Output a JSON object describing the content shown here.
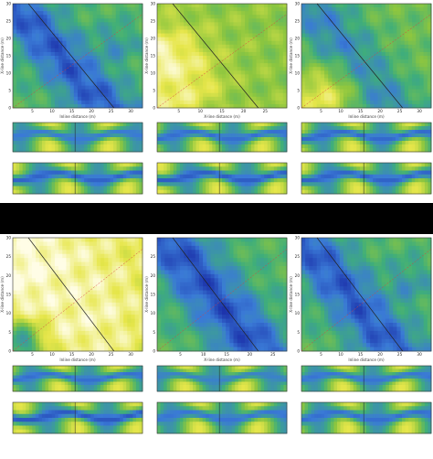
{
  "figure": {
    "separator_color": "#000000",
    "colormap": [
      "#1a2ea8",
      "#3a7ad6",
      "#3fae7a",
      "#8dc63f",
      "#e6e64a",
      "#fffde6"
    ],
    "reference_line_colors": {
      "diagonal": "#222222",
      "inline_ref": "#d94040"
    }
  },
  "chart_data": [
    {
      "id": "a-main",
      "type": "heatmap",
      "x_label": "Inline distance (m)",
      "y_label": "X-line distance (m)",
      "x_ticks": [
        "5",
        "10",
        "15",
        "20",
        "25",
        "30"
      ],
      "y_ticks": [
        "0",
        "5",
        "10",
        "15",
        "20",
        "25",
        "30"
      ],
      "xlim": [
        0,
        33
      ],
      "ylim": [
        0,
        30
      ],
      "fields": [
        {
          "kind": "band",
          "from": [
            0,
            30
          ],
          "to": [
            24,
            0
          ],
          "width": 5,
          "value": 0.12
        },
        {
          "kind": "blob",
          "at": [
            26,
            18
          ],
          "r": 4,
          "value": 0.3
        }
      ],
      "base": 0.45
    },
    {
      "id": "b-main",
      "type": "heatmap",
      "x_label": "X-line distance (m)",
      "y_label": "X-line distance (m)",
      "x_ticks": [
        "5",
        "10",
        "15",
        "20",
        "25"
      ],
      "y_ticks": [
        "0",
        "5",
        "10",
        "15",
        "20",
        "25",
        "30"
      ],
      "xlim": [
        0,
        30
      ],
      "ylim": [
        0,
        30
      ],
      "fields": [
        {
          "kind": "blob",
          "at": [
            0,
            12
          ],
          "r": 8,
          "value": 0.98
        },
        {
          "kind": "blob",
          "at": [
            4,
            5
          ],
          "r": 6,
          "value": 0.85
        }
      ],
      "base": 0.6
    },
    {
      "id": "c-main",
      "type": "heatmap",
      "x_label": "Inline distance (m)",
      "y_label": "X-line distance (m)",
      "x_ticks": [
        "5",
        "10",
        "15",
        "20",
        "25",
        "30"
      ],
      "y_ticks": [
        "0",
        "5",
        "10",
        "15",
        "20",
        "25",
        "30"
      ],
      "xlim": [
        0,
        33
      ],
      "ylim": [
        0,
        30
      ],
      "fields": [
        {
          "kind": "band",
          "from": [
            2,
            30
          ],
          "to": [
            22,
            0
          ],
          "width": 6,
          "value": 0.25
        },
        {
          "kind": "blob",
          "at": [
            5,
            3
          ],
          "r": 6,
          "value": 0.8
        }
      ],
      "base": 0.52
    },
    {
      "id": "d-main",
      "type": "heatmap",
      "x_label": "Inline distance (m)",
      "y_label": "X-line distance (m)",
      "x_ticks": [
        "5",
        "10",
        "15",
        "20",
        "25",
        "30"
      ],
      "y_ticks": [
        "0",
        "5",
        "10",
        "15",
        "20",
        "25",
        "30"
      ],
      "xlim": [
        0,
        33
      ],
      "ylim": [
        0,
        30
      ],
      "fields": [
        {
          "kind": "blob",
          "at": [
            4,
            22
          ],
          "r": 12,
          "value": 0.99
        },
        {
          "kind": "blob",
          "at": [
            18,
            10
          ],
          "r": 10,
          "value": 0.92
        },
        {
          "kind": "blob",
          "at": [
            2,
            2
          ],
          "r": 4,
          "value": 0.3
        }
      ],
      "base": 0.8
    },
    {
      "id": "e-main",
      "type": "heatmap",
      "x_label": "X-line distance (m)",
      "y_label": "X-line distance (m)",
      "x_ticks": [
        "5",
        "10",
        "15",
        "20",
        "25"
      ],
      "y_ticks": [
        "0",
        "5",
        "10",
        "15",
        "20",
        "25"
      ],
      "xlim": [
        0,
        28
      ],
      "ylim": [
        0,
        30
      ],
      "fields": [
        {
          "kind": "band",
          "from": [
            2,
            30
          ],
          "to": [
            22,
            0
          ],
          "width": 5,
          "value": 0.1
        }
      ],
      "base": 0.45
    },
    {
      "id": "f-main",
      "type": "heatmap",
      "x_label": "Inline distance (m)",
      "y_label": "X-line distance (m)",
      "x_ticks": [
        "5",
        "10",
        "15",
        "20",
        "25",
        "30"
      ],
      "y_ticks": [
        "0",
        "5",
        "10",
        "15",
        "20",
        "25",
        "30"
      ],
      "xlim": [
        0,
        33
      ],
      "ylim": [
        0,
        30
      ],
      "fields": [
        {
          "kind": "band",
          "from": [
            0,
            30
          ],
          "to": [
            24,
            0
          ],
          "width": 5,
          "value": 0.12
        },
        {
          "kind": "blob",
          "at": [
            27,
            18
          ],
          "r": 4,
          "value": 0.3
        }
      ],
      "base": 0.45
    }
  ]
}
